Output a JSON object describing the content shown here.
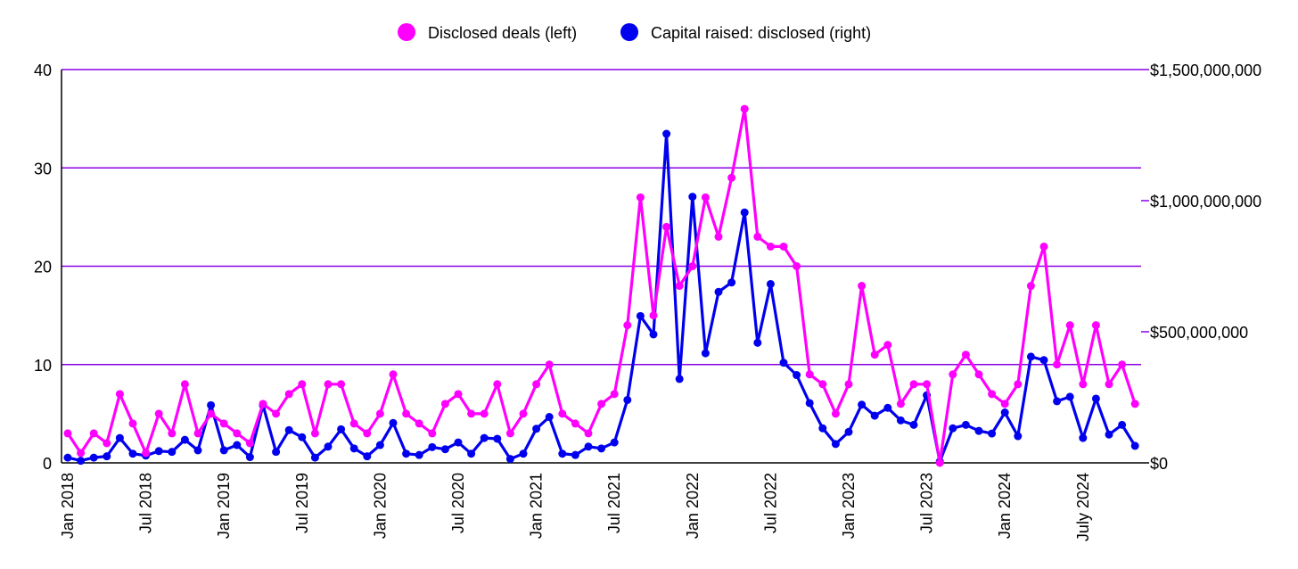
{
  "chart_data": {
    "type": "line",
    "legend": {
      "position": "top",
      "items": [
        {
          "name": "Disclosed deals (left)",
          "color": "#ff00ff"
        },
        {
          "name": "Capital raised: disclosed (right)",
          "color": "#0000ee"
        }
      ]
    },
    "x_tick_labels": [
      "Jan 2018",
      "Jul 2018",
      "Jan 2019",
      "Jul 2019",
      "Jan 2020",
      "Jul 2020",
      "Jan 2021",
      "Jul 2021",
      "Jan 2022",
      "Jul 2022",
      "Jan 2023",
      "Jul 2023",
      "Jan 2024",
      "July 2024"
    ],
    "x_tick_month_index": [
      0,
      6,
      12,
      18,
      24,
      30,
      36,
      42,
      48,
      54,
      60,
      66,
      72,
      78
    ],
    "left_axis": {
      "ylim": [
        0,
        40
      ],
      "ticks": [
        0,
        10,
        20,
        30,
        40
      ],
      "tick_labels": [
        "0",
        "10",
        "20",
        "30",
        "40"
      ]
    },
    "right_axis": {
      "ylim": [
        0,
        1500000000
      ],
      "ticks": [
        0,
        500000000,
        1000000000,
        1500000000
      ],
      "tick_labels": [
        "$0",
        "$500,000,000",
        "$1,000,000,000",
        "$1,500,000,000"
      ]
    },
    "grid": true,
    "gridline_color": "#8a00e6",
    "series": [
      {
        "name": "Disclosed deals (left)",
        "axis": "left",
        "color": "#ff00ff",
        "values": [
          3,
          1,
          3,
          2,
          7,
          4,
          1,
          5,
          3,
          8,
          3,
          5,
          4,
          3,
          2,
          6,
          5,
          7,
          8,
          3,
          8,
          8,
          4,
          3,
          5,
          9,
          5,
          4,
          3,
          6,
          7,
          5,
          5,
          8,
          3,
          5,
          8,
          10,
          5,
          4,
          3,
          6,
          7,
          14,
          27,
          15,
          24,
          18,
          20,
          27,
          23,
          29,
          36,
          23,
          22,
          22,
          20,
          9,
          8,
          5,
          8,
          18,
          11,
          12,
          6,
          8,
          8,
          0,
          9,
          11,
          9,
          7,
          6,
          8,
          18,
          22,
          10,
          14,
          8,
          14,
          8,
          10,
          6
        ]
      },
      {
        "name": "Capital raised: disclosed (right)",
        "axis": "right",
        "color": "#0000ee",
        "values": [
          20000000,
          8000000,
          20000000,
          25000000,
          95000000,
          35000000,
          28000000,
          45000000,
          42000000,
          88000000,
          48000000,
          220000000,
          48000000,
          68000000,
          22000000,
          220000000,
          42000000,
          125000000,
          98000000,
          20000000,
          62000000,
          128000000,
          55000000,
          25000000,
          68000000,
          152000000,
          35000000,
          30000000,
          60000000,
          52000000,
          78000000,
          35000000,
          95000000,
          92000000,
          15000000,
          35000000,
          130000000,
          175000000,
          35000000,
          30000000,
          62000000,
          55000000,
          78000000,
          240000000,
          560000000,
          490000000,
          1255000000,
          320000000,
          1015000000,
          418000000,
          652000000,
          688000000,
          955000000,
          458000000,
          682000000,
          382000000,
          335000000,
          228000000,
          132000000,
          72000000,
          118000000,
          222000000,
          180000000,
          210000000,
          162000000,
          145000000,
          258000000,
          5000000,
          132000000,
          145000000,
          122000000,
          112000000,
          192000000,
          102000000,
          405000000,
          392000000,
          235000000,
          252000000,
          95000000,
          245000000,
          108000000,
          145000000,
          65000000
        ]
      }
    ]
  }
}
